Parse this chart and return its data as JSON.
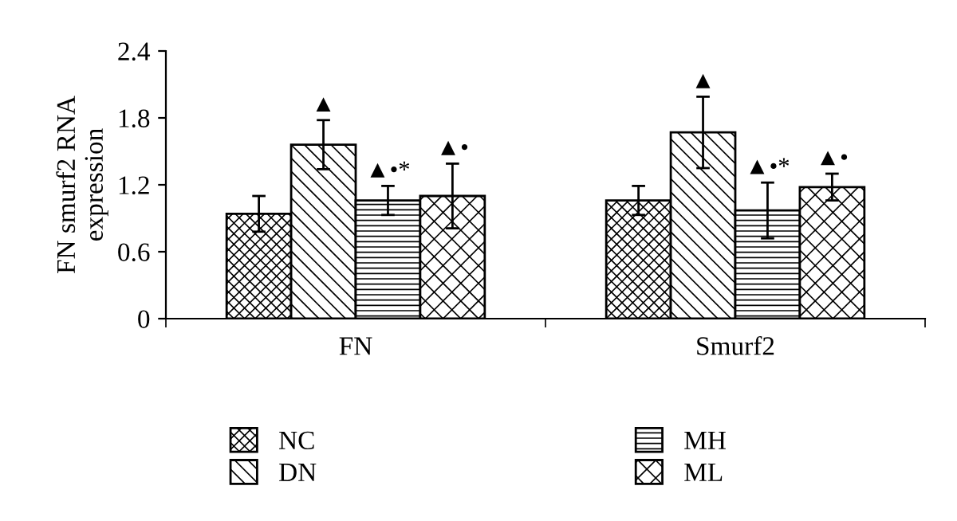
{
  "chart_data": {
    "type": "bar",
    "ylabel": "FN smurf2 RNA\nexpression",
    "categories": [
      "FN",
      "Smurf2"
    ],
    "series": [
      {
        "name": "NC",
        "color": "#000000",
        "values": [
          0.94,
          1.06
        ],
        "errors": [
          0.16,
          0.13
        ]
      },
      {
        "name": "DN",
        "color": "#000000",
        "values": [
          1.56,
          1.67
        ],
        "errors": [
          0.22,
          0.32
        ],
        "value_labels": [
          "▲",
          "▲"
        ]
      },
      {
        "name": "MH",
        "color": "#000000",
        "values": [
          1.06,
          0.97
        ],
        "errors": [
          0.13,
          0.25
        ],
        "value_labels": [
          "▲•*",
          "▲•*"
        ]
      },
      {
        "name": "ML",
        "color": "#000000",
        "values": [
          1.1,
          1.18
        ],
        "errors": [
          0.29,
          0.12
        ],
        "value_labels": [
          "▲•",
          "▲•"
        ]
      }
    ],
    "ylim": [
      0,
      2.4
    ],
    "yticks": [
      0,
      0.6,
      1.2,
      1.8,
      2.4
    ],
    "grid": false,
    "legend": "bottom"
  }
}
